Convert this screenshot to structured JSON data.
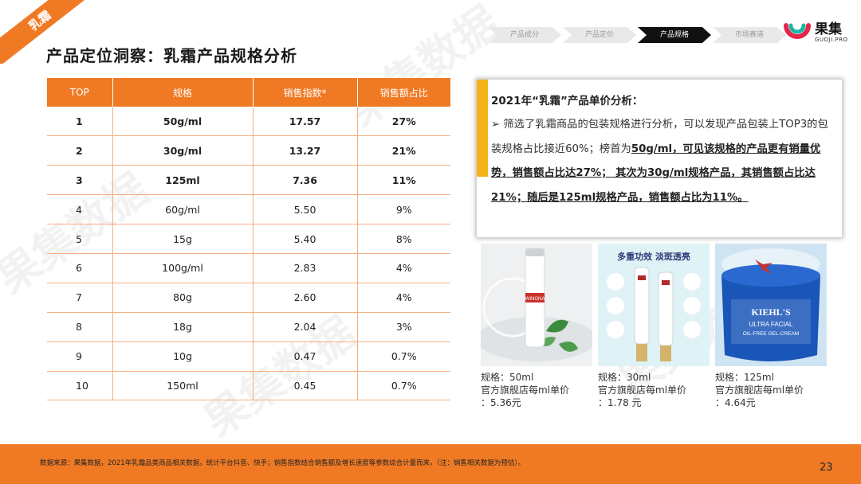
{
  "ribbon": "乳霜",
  "page_title": "产品定位洞察：乳霜产品规格分析",
  "nav_steps": [
    "产品成分",
    "产品定价",
    "产品规格",
    "市场赛道"
  ],
  "nav_active": 2,
  "logo": {
    "name": "果集",
    "sub": "GUOJI.PRO"
  },
  "table": {
    "headers": [
      "TOP",
      "规格",
      "销售指数*",
      "销售额占比"
    ],
    "rows": [
      [
        "1",
        "50g/ml",
        "17.57",
        "27%"
      ],
      [
        "2",
        "30g/ml",
        "13.27",
        "21%"
      ],
      [
        "3",
        "125ml",
        "7.36",
        "11%"
      ],
      [
        "4",
        "60g/ml",
        "5.50",
        "9%"
      ],
      [
        "5",
        "15g",
        "5.40",
        "8%"
      ],
      [
        "6",
        "100g/ml",
        "2.83",
        "4%"
      ],
      [
        "7",
        "80g",
        "2.60",
        "4%"
      ],
      [
        "8",
        "18g",
        "2.04",
        "3%"
      ],
      [
        "9",
        "10g",
        "0.47",
        "0.7%"
      ],
      [
        "10",
        "150ml",
        "0.45",
        "0.7%"
      ]
    ]
  },
  "analysis": {
    "title": "2021年“乳霜”产品单价分析：",
    "bullet": "➢",
    "text_plain": "筛选了乳霜商品的包装规格进行分析，可以发现产品包装上TOP3的包装规格占比接近60%；榜首为",
    "text_bold": "50g/ml，可见该规格的产品更有销量优势，销售额占比达27%； 其次为30g/ml规格产品，其销售额占比达21%；随后是125ml规格产品，销售额占比为11%。"
  },
  "products": [
    {
      "spec": "规格：50ml",
      "price_label": "官方旗舰店每ml单价",
      "price": "：5.36元"
    },
    {
      "spec": "规格：30ml",
      "price_label": "官方旗舰店每ml单价",
      "price": "：1.78 元"
    },
    {
      "spec": "规格：125ml",
      "price_label": "官方旗舰店每ml单价",
      "price": "：4.64元"
    }
  ],
  "product_art": {
    "p2_tagline": "多重功效 淡斑透亮",
    "p3_brand": "KIEHL'S",
    "p3_line1": "ULTRA FACIAL",
    "p3_line2": "OIL-FREE GEL-CREAM",
    "p1_brand": "WINONA"
  },
  "footer_note": "数据来源：果集数据，2021年乳霜品类商品相关数据，统计平台抖音、快手；销售指数结合销售额及增长速度等参数综合计量而来，（注：销售相关数据为预估）。",
  "page_number": "23",
  "colors": {
    "accent": "#f07a24",
    "highlight": "#f4b21b"
  }
}
